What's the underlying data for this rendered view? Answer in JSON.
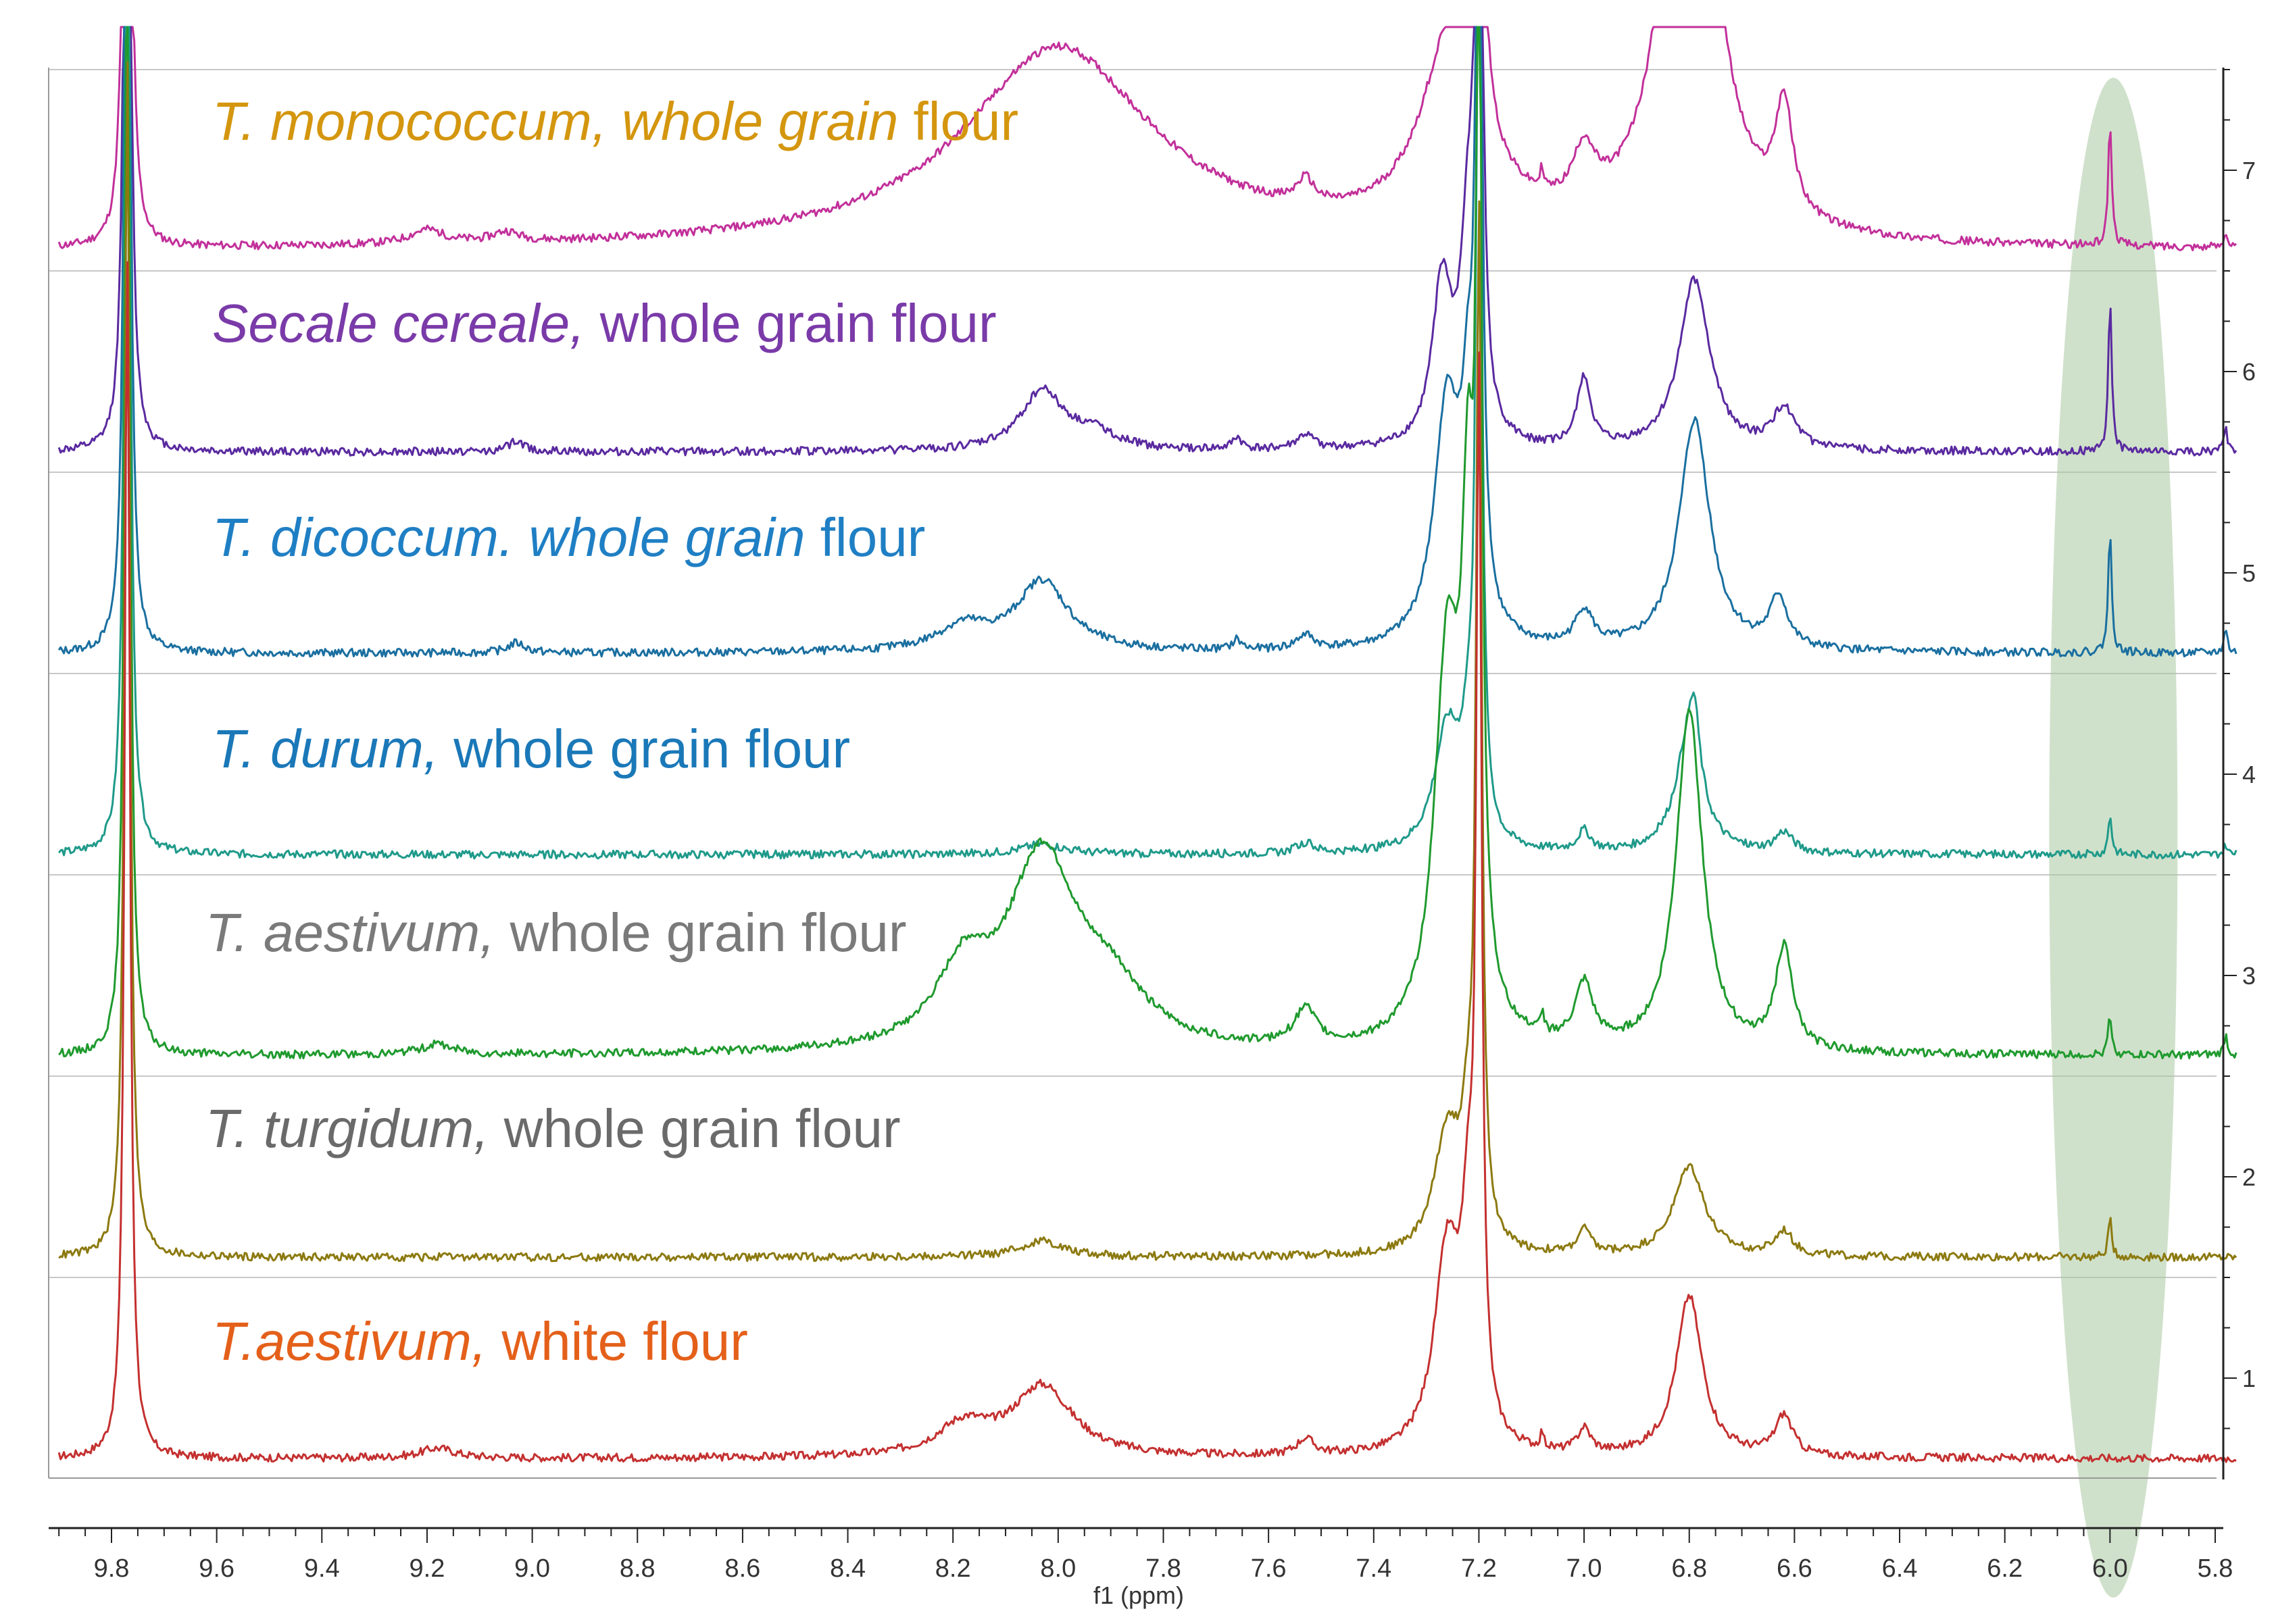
{
  "chart_data": {
    "type": "line",
    "title": "",
    "xlabel": "f1 (ppm)",
    "ylabel": "",
    "xlim": [
      9.9,
      5.76
    ],
    "x_ticks": [
      "9.8",
      "9.6",
      "9.4",
      "9.2",
      "9.0",
      "8.8",
      "8.6",
      "8.4",
      "8.2",
      "8.0",
      "7.8",
      "7.6",
      "7.4",
      "7.2",
      "7.0",
      "6.8",
      "6.6",
      "6.4",
      "6.2",
      "6.0",
      "5.8"
    ],
    "y_ticks": [
      "1",
      "2",
      "3",
      "4",
      "5",
      "6",
      "7"
    ],
    "grid": "horizontal",
    "highlight": {
      "shape": "ellipse",
      "center_ppm": 6.0,
      "color": "#a9c9a0"
    },
    "reference_peaks_ppm": [
      9.77,
      7.2
    ],
    "series": [
      {
        "name": "T. monococcum, whole grain flour",
        "italic": "T. monococcum, whole grain",
        "plain": " flour",
        "color": "#c2309a",
        "label_color": "#d4960e",
        "baseline": 6.6,
        "clip": true,
        "peaks": [
          [
            9.77,
            6.0,
            0.006
          ],
          [
            9.2,
            0.07,
            0.04
          ],
          [
            9.05,
            0.05,
            0.03
          ],
          [
            8.0,
            1.0,
            0.22
          ],
          [
            7.53,
            0.12,
            0.02
          ],
          [
            7.25,
            1.0,
            0.07
          ],
          [
            7.2,
            5.0,
            0.006
          ],
          [
            7.08,
            0.1,
            0.004
          ],
          [
            7.0,
            0.28,
            0.025
          ],
          [
            6.8,
            3.0,
            0.05
          ],
          [
            6.62,
            0.55,
            0.02
          ],
          [
            6.0,
            0.62,
            0.004
          ],
          [
            5.78,
            0.08,
            0.004
          ]
        ]
      },
      {
        "name": "Secale cereale, whole grain flour",
        "italic": "Secale cereale,",
        "plain": " whole grain flour",
        "color": "#5a2aa0",
        "label_color": "#7a3aa8",
        "baseline": 5.6,
        "clip": false,
        "peaks": [
          [
            9.77,
            6.0,
            0.006
          ],
          [
            9.03,
            0.05,
            0.02
          ],
          [
            8.03,
            0.3,
            0.05
          ],
          [
            7.93,
            0.08,
            0.05
          ],
          [
            7.66,
            0.06,
            0.01
          ],
          [
            7.53,
            0.07,
            0.02
          ],
          [
            7.27,
            0.8,
            0.022
          ],
          [
            7.22,
            1.0,
            0.018
          ],
          [
            7.2,
            5.0,
            0.006
          ],
          [
            7.0,
            0.35,
            0.015
          ],
          [
            6.79,
            0.85,
            0.035
          ],
          [
            6.62,
            0.2,
            0.025
          ],
          [
            6.0,
            0.75,
            0.004
          ],
          [
            5.78,
            0.12,
            0.004
          ]
        ]
      },
      {
        "name": "T. dicoccum. whole grain flour",
        "italic": "T. dicoccum. whole grain",
        "plain": " flour",
        "color": "#1a6fa0",
        "label_color": "#1f7fc4",
        "baseline": 4.6,
        "clip": false,
        "peaks": [
          [
            9.77,
            6.0,
            0.006
          ],
          [
            9.03,
            0.05,
            0.02
          ],
          [
            8.18,
            0.12,
            0.06
          ],
          [
            8.03,
            0.35,
            0.06
          ],
          [
            7.66,
            0.05,
            0.01
          ],
          [
            7.53,
            0.07,
            0.02
          ],
          [
            7.26,
            1.2,
            0.03
          ],
          [
            7.22,
            0.9,
            0.015
          ],
          [
            7.2,
            5.0,
            0.006
          ],
          [
            7.0,
            0.18,
            0.02
          ],
          [
            6.79,
            1.15,
            0.035
          ],
          [
            6.63,
            0.25,
            0.02
          ],
          [
            6.0,
            0.6,
            0.004
          ],
          [
            5.78,
            0.12,
            0.004
          ]
        ]
      },
      {
        "name": "T. durum, whole grain flour",
        "italic": "T. durum,",
        "plain": " whole grain flour",
        "color": "#1f9a8a",
        "label_color": "#1a78b8",
        "baseline": 3.6,
        "clip": false,
        "peaks": [
          [
            9.77,
            6.0,
            0.006
          ],
          [
            8.03,
            0.05,
            0.05
          ],
          [
            7.53,
            0.05,
            0.02
          ],
          [
            7.26,
            0.6,
            0.03
          ],
          [
            7.22,
            0.4,
            0.015
          ],
          [
            7.2,
            5.0,
            0.006
          ],
          [
            7.0,
            0.1,
            0.015
          ],
          [
            6.8,
            0.6,
            0.03
          ],
          [
            6.79,
            0.25,
            0.01
          ],
          [
            6.62,
            0.1,
            0.02
          ],
          [
            6.0,
            0.2,
            0.004
          ],
          [
            5.78,
            0.05,
            0.004
          ]
        ]
      },
      {
        "name": "T. aestivum, whole grain flour",
        "italic": "T. aestivum,",
        "plain": " whole grain flour",
        "color": "#1f9a2e",
        "label_color": "#7a7a7a",
        "baseline": 2.6,
        "clip": false,
        "peaks": [
          [
            9.77,
            6.0,
            0.006
          ],
          [
            9.18,
            0.05,
            0.04
          ],
          [
            8.18,
            0.35,
            0.06
          ],
          [
            8.03,
            0.95,
            0.08
          ],
          [
            7.9,
            0.25,
            0.08
          ],
          [
            7.53,
            0.18,
            0.025
          ],
          [
            7.26,
            1.9,
            0.03
          ],
          [
            7.22,
            2.2,
            0.015
          ],
          [
            7.2,
            5.0,
            0.006
          ],
          [
            7.08,
            0.1,
            0.004
          ],
          [
            7.0,
            0.3,
            0.02
          ],
          [
            6.8,
            1.7,
            0.03
          ],
          [
            6.62,
            0.5,
            0.02
          ],
          [
            6.0,
            0.2,
            0.004
          ],
          [
            5.78,
            0.1,
            0.004
          ]
        ]
      },
      {
        "name": "T. turgidum, whole grain flour",
        "italic": "T. turgidum,",
        "plain": " whole grain flour",
        "color": "#8c7a10",
        "label_color": "#6a6a6a",
        "baseline": 1.6,
        "clip": false,
        "peaks": [
          [
            9.77,
            6.0,
            0.006
          ],
          [
            8.03,
            0.08,
            0.05
          ],
          [
            7.26,
            0.6,
            0.03
          ],
          [
            7.22,
            0.5,
            0.015
          ],
          [
            7.2,
            5.0,
            0.006
          ],
          [
            7.0,
            0.12,
            0.015
          ],
          [
            6.8,
            0.45,
            0.035
          ],
          [
            6.62,
            0.12,
            0.02
          ],
          [
            6.0,
            0.2,
            0.004
          ]
        ]
      },
      {
        "name": "T.aestivum, white flour",
        "italic": "T.aestivum,",
        "plain": " white flour",
        "color": "#c43030",
        "label_color": "#e4601a",
        "baseline": 0.6,
        "clip": false,
        "peaks": [
          [
            9.77,
            6.0,
            0.006
          ],
          [
            9.18,
            0.05,
            0.04
          ],
          [
            8.18,
            0.15,
            0.06
          ],
          [
            8.03,
            0.35,
            0.07
          ],
          [
            7.53,
            0.08,
            0.02
          ],
          [
            7.26,
            1.0,
            0.03
          ],
          [
            7.22,
            0.9,
            0.015
          ],
          [
            7.2,
            5.0,
            0.006
          ],
          [
            7.08,
            0.08,
            0.004
          ],
          [
            7.0,
            0.12,
            0.015
          ],
          [
            6.8,
            0.8,
            0.03
          ],
          [
            6.62,
            0.2,
            0.02
          ]
        ]
      }
    ]
  }
}
